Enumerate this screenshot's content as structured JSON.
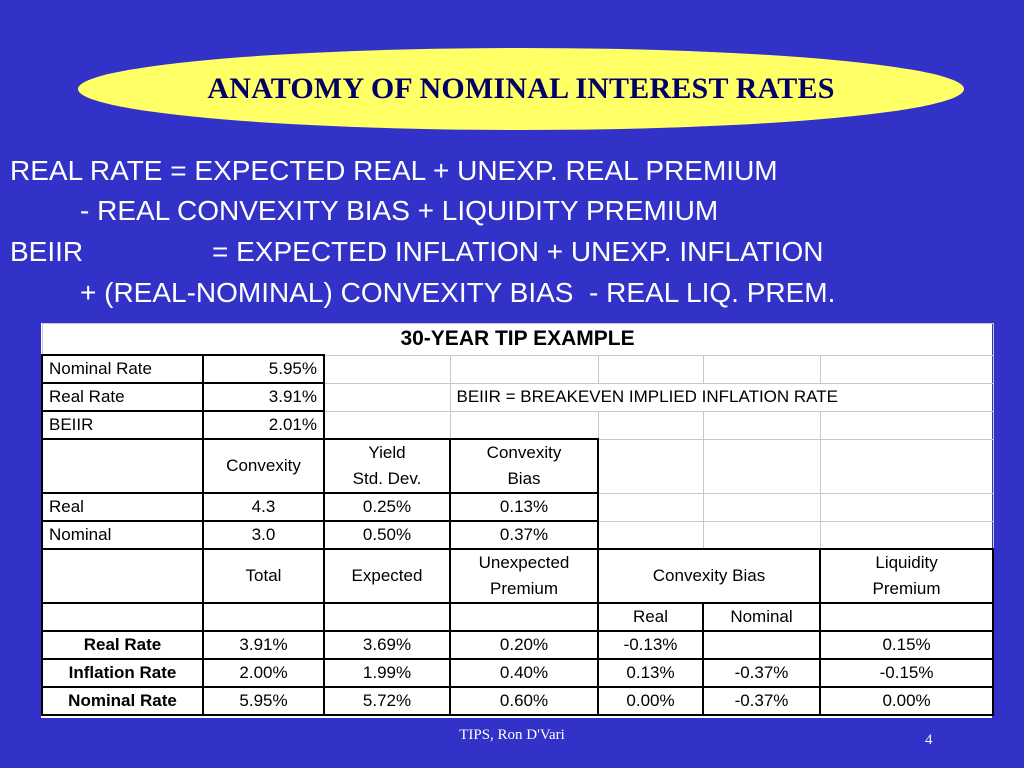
{
  "slide": {
    "title": "ANATOMY OF NOMINAL INTEREST RATES",
    "lines": [
      "REAL RATE = EXPECTED REAL + UNEXP. REAL PREMIUM",
      "- REAL CONVEXITY BIAS + LIQUIDITY PREMIUM",
      "BEIIR",
      "= EXPECTED INFLATION + UNEXP. INFLATION",
      "+ (REAL-NOMINAL) CONVEXITY BIAS  - REAL LIQ. PREM."
    ],
    "footer": "TIPS, Ron D'Vari",
    "page_number": "4"
  },
  "table": {
    "title": "30-YEAR TIP EXAMPLE",
    "rates": [
      {
        "label": "Nominal Rate",
        "value": "5.95%"
      },
      {
        "label": "Real Rate",
        "value": "3.91%"
      },
      {
        "label": "BEIIR",
        "value": "2.01%"
      }
    ],
    "beiir_note": "BEIIR = BREAKEVEN IMPLIED INFLATION RATE",
    "convexity_headers": {
      "convexity": "Convexity",
      "yield_std_dev": [
        "Yield",
        "Std. Dev."
      ],
      "convexity_bias": [
        "Convexity",
        "Bias"
      ]
    },
    "convexity_rows": [
      {
        "label": "Real",
        "convexity": "4.3",
        "std_dev": "0.25%",
        "bias": "0.13%"
      },
      {
        "label": "Nominal",
        "convexity": "3.0",
        "std_dev": "0.50%",
        "bias": "0.37%"
      }
    ],
    "decomp_headers": {
      "total": "Total",
      "expected": "Expected",
      "unexpected_premium": [
        "Unexpected",
        "Premium"
      ],
      "convexity_bias": "Convexity Bias",
      "liquidity_premium": [
        "Liquidity",
        "Premium"
      ],
      "real": "Real",
      "nominal": "Nominal"
    },
    "decomp_rows": [
      {
        "label": "Real Rate",
        "total": "3.91%",
        "expected": "3.69%",
        "unexpected": "0.20%",
        "cb_real": "-0.13%",
        "cb_nominal": "",
        "liquidity": "0.15%"
      },
      {
        "label": "Inflation Rate",
        "total": "2.00%",
        "expected": "1.99%",
        "unexpected": "0.40%",
        "cb_real": "0.13%",
        "cb_nominal": "-0.37%",
        "liquidity": "-0.15%"
      },
      {
        "label": "Nominal Rate",
        "total": "5.95%",
        "expected": "5.72%",
        "unexpected": "0.60%",
        "cb_real": "0.00%",
        "cb_nominal": "-0.37%",
        "liquidity": "0.00%"
      }
    ]
  }
}
